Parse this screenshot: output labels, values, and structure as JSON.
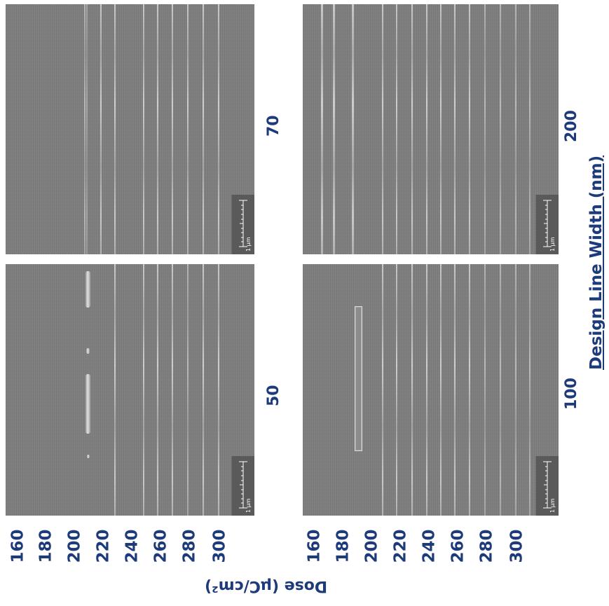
{
  "panels": [
    {
      "design_width_label": "70",
      "scale_label": "1 µm"
    },
    {
      "design_width_label": "50",
      "scale_label": "1 µm"
    },
    {
      "design_width_label": "200",
      "scale_label": "1 µm"
    },
    {
      "design_width_label": "100",
      "scale_label": "1 µm"
    }
  ],
  "dose_ticks": [
    "160",
    "180",
    "200",
    "220",
    "240",
    "260",
    "280",
    "300"
  ],
  "x_axis_title": "Design Line Width (nm)",
  "dose_axis_title": "Dose (µC/cm²)",
  "colors": {
    "label_blue": "#1d3a7a",
    "sem_background": "#7d7d7d"
  }
}
